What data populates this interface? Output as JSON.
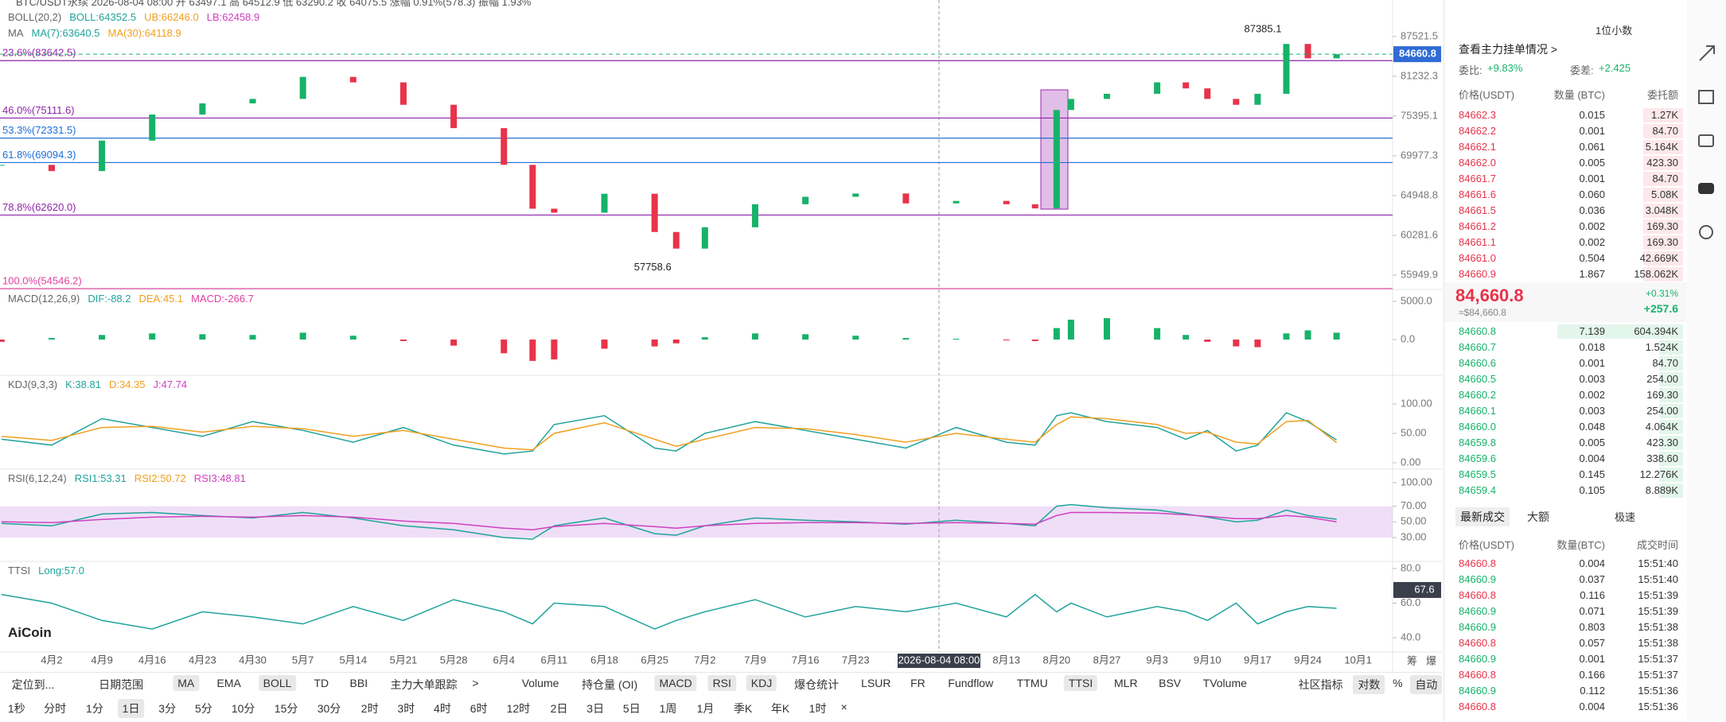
{
  "header": {
    "symbol_line": "BTC/USDT永续 2026-08-04 08:00 开 63497.1 高 64512.9 低 63290.2 收 64075.5 涨幅 0.91%(578.3) 振幅 1.93%",
    "logo": "AiCoin"
  },
  "chart_data": [
    {
      "type": "candlestick",
      "log": true,
      "labels": [
        [
          {
            "text": "BOLL(20,2)",
            "color": "#666"
          },
          {
            "text": "BOLL:64352.5",
            "color": "#21a39b"
          },
          {
            "text": "UB:66246.0",
            "color": "#f0a020"
          },
          {
            "text": "LB:62458.9",
            "color": "#d040c0"
          }
        ],
        [
          {
            "text": "MA",
            "color": "#666"
          },
          {
            "text": "MA(7):63640.5",
            "color": "#21a39b"
          },
          {
            "text": "MA(30):64118.9",
            "color": "#f0a020"
          }
        ]
      ],
      "x": [
        -7,
        0,
        7,
        14,
        21,
        28,
        35,
        42,
        49,
        56,
        63,
        67,
        70,
        77,
        84,
        87,
        91,
        98,
        105,
        112,
        119,
        126,
        133,
        137,
        140,
        142,
        147,
        154,
        158,
        161,
        165,
        168,
        172,
        175,
        179
      ],
      "close": [
        68800,
        68000,
        72000,
        75600,
        77200,
        77850,
        81130,
        80300,
        77000,
        73700,
        68800,
        63370,
        62900,
        65170,
        60660,
        58800,
        61200,
        63900,
        64800,
        65200,
        64000,
        64300,
        63900,
        63400,
        76250,
        77850,
        78600,
        80300,
        79400,
        77850,
        77000,
        78600,
        86300,
        84000,
        84660.8
      ],
      "up_color": "#17b26a",
      "down_color": "#e8334a",
      "xlim": [
        -7.2,
        186.8
      ],
      "xticks": [
        {
          "value": 0,
          "label": "4月2"
        },
        {
          "value": 7,
          "label": "4月9"
        },
        {
          "value": 14,
          "label": "4月16"
        },
        {
          "value": 21,
          "label": "4月23"
        },
        {
          "value": 28,
          "label": "4月30"
        },
        {
          "value": 35,
          "label": "5月7"
        },
        {
          "value": 42,
          "label": "5月14"
        },
        {
          "value": 49,
          "label": "5月21"
        },
        {
          "value": 56,
          "label": "5月28"
        },
        {
          "value": 63,
          "label": "6月4"
        },
        {
          "value": 70,
          "label": "6月11"
        },
        {
          "value": 77,
          "label": "6月18"
        },
        {
          "value": 84,
          "label": "6月25"
        },
        {
          "value": 91,
          "label": "7月2"
        },
        {
          "value": 98,
          "label": "7月9"
        },
        {
          "value": 105,
          "label": "7月16"
        },
        {
          "value": 112,
          "label": "7月23"
        },
        {
          "value": 133,
          "label": "8月13"
        },
        {
          "value": 140,
          "label": "8月20"
        },
        {
          "value": 147,
          "label": "8月27"
        },
        {
          "value": 154,
          "label": "9月3"
        },
        {
          "value": 161,
          "label": "9月10"
        },
        {
          "value": 168,
          "label": "9月17"
        },
        {
          "value": 175,
          "label": "9月24"
        },
        {
          "value": 182,
          "label": "10月1"
        }
      ],
      "ylim": [
        54630,
        92600
      ],
      "yticks": [
        87521.5,
        81232.3,
        75395.1,
        69977.3,
        64948.8,
        60281.6,
        55949.9
      ],
      "fib_levels": [
        {
          "value": 83642.5,
          "label": "23.6%(83642.5)",
          "color": "#8e24aa"
        },
        {
          "value": 75111.6,
          "label": "46.0%(75111.6)",
          "color": "#8e24aa"
        },
        {
          "value": 72331.5,
          "label": "53.3%(72331.5)",
          "color": "#1e6fd9"
        },
        {
          "value": 69094.3,
          "label": "61.8%(69094.3)",
          "color": "#1e6fd9"
        },
        {
          "value": 62620.0,
          "label": "78.8%(62620.0)",
          "color": "#8e24aa"
        },
        {
          "value": 54546.2,
          "label": "100.0%(54546.2)",
          "color": "#e040a0"
        }
      ],
      "extremes": [
        {
          "x": 172,
          "value": 87385.1
        },
        {
          "x": 87,
          "value": 57758.6
        }
      ],
      "current_price": 84660.8,
      "crosshair_label": "2026-08-04 08:00",
      "axis_extra": [
        "筹",
        "爆"
      ]
    },
    {
      "type": "bar",
      "labels": [
        [
          {
            "text": "MACD(12,26,9)",
            "color": "#666"
          },
          {
            "text": "DIF:-88.2",
            "color": "#21a39b"
          },
          {
            "text": "DEA:45.1",
            "color": "#f0a020"
          },
          {
            "text": "MACD:-266.7",
            "color": "#e040a0"
          }
        ]
      ],
      "x": [
        -7,
        0,
        7,
        14,
        21,
        28,
        35,
        42,
        49,
        56,
        63,
        67,
        70,
        77,
        84,
        87,
        91,
        98,
        105,
        112,
        119,
        126,
        133,
        137,
        140,
        142,
        147,
        154,
        158,
        161,
        165,
        168,
        172,
        175,
        179
      ],
      "values": [
        -300,
        200,
        600,
        800,
        700,
        600,
        900,
        500,
        -200,
        -800,
        -1800,
        -2800,
        -2600,
        -1200,
        -900,
        -500,
        300,
        800,
        700,
        500,
        200,
        100,
        -100,
        -200,
        1500,
        2600,
        2800,
        1500,
        600,
        -300,
        -900,
        -1000,
        800,
        1200,
        900
      ],
      "ylim": [
        -4479,
        6354
      ],
      "yticks": [
        {
          "value": 5000,
          "label": "5000.0"
        },
        {
          "value": 0,
          "label": "0.0"
        }
      ]
    },
    {
      "type": "line",
      "labels": [
        [
          {
            "text": "KDJ(9,3,3)",
            "color": "#666"
          },
          {
            "text": "K:38.81",
            "color": "#21a39b"
          },
          {
            "text": "D:34.35",
            "color": "#f0a020"
          },
          {
            "text": "J:47.74",
            "color": "#d040c0"
          }
        ]
      ],
      "x": [
        -7,
        0,
        7,
        14,
        21,
        28,
        35,
        42,
        49,
        56,
        63,
        67,
        70,
        77,
        84,
        87,
        91,
        98,
        105,
        112,
        119,
        126,
        133,
        137,
        140,
        142,
        147,
        154,
        158,
        161,
        165,
        168,
        172,
        175,
        179
      ],
      "series": [
        {
          "color": "#21a39b",
          "values": [
            40,
            30,
            75,
            60,
            45,
            70,
            55,
            35,
            60,
            30,
            15,
            20,
            65,
            80,
            25,
            20,
            50,
            70,
            55,
            40,
            25,
            60,
            35,
            30,
            80,
            85,
            70,
            60,
            40,
            55,
            20,
            30,
            85,
            70,
            38.81
          ]
        },
        {
          "color": "#f0a020",
          "values": [
            45,
            38,
            60,
            62,
            52,
            62,
            58,
            45,
            55,
            40,
            25,
            22,
            50,
            68,
            40,
            28,
            40,
            60,
            58,
            48,
            35,
            50,
            40,
            35,
            65,
            78,
            75,
            65,
            50,
            52,
            35,
            32,
            70,
            72,
            34.35
          ]
        }
      ],
      "ylim": [
        -10.8,
        145.9
      ],
      "yticks": [
        {
          "value": 100,
          "label": "100.00"
        },
        {
          "value": 50,
          "label": "50.00"
        },
        {
          "value": 0,
          "label": "0.00"
        }
      ]
    },
    {
      "type": "line",
      "labels": [
        [
          {
            "text": "RSI(6,12,24)",
            "color": "#666"
          },
          {
            "text": "RSI1:53.31",
            "color": "#21a39b"
          },
          {
            "text": "RSI2:50.72",
            "color": "#f0a020"
          },
          {
            "text": "RSI3:48.81",
            "color": "#d040c0"
          }
        ]
      ],
      "x": [
        -7,
        0,
        7,
        14,
        21,
        28,
        35,
        42,
        49,
        56,
        63,
        67,
        70,
        77,
        84,
        87,
        91,
        98,
        105,
        112,
        119,
        126,
        133,
        137,
        140,
        142,
        147,
        154,
        158,
        161,
        165,
        168,
        172,
        175,
        179
      ],
      "series": [
        {
          "color": "#21a39b",
          "values": [
            48,
            45,
            60,
            62,
            58,
            55,
            62,
            55,
            45,
            40,
            30,
            28,
            45,
            55,
            35,
            33,
            45,
            55,
            52,
            50,
            47,
            52,
            48,
            45,
            70,
            72,
            68,
            65,
            60,
            56,
            50,
            52,
            65,
            58,
            53.31
          ]
        },
        {
          "color": "#d040c0",
          "values": [
            50,
            49,
            53,
            56,
            57,
            56,
            58,
            56,
            51,
            48,
            42,
            40,
            44,
            48,
            44,
            42,
            45,
            48,
            49,
            49,
            48,
            49,
            48,
            47,
            58,
            62,
            62,
            61,
            59,
            57,
            54,
            54,
            58,
            56,
            50
          ]
        }
      ],
      "band": [
        30,
        70
      ],
      "ylim": [
        0.6,
        115.2
      ],
      "yticks": [
        {
          "value": 100,
          "label": "100.00"
        },
        {
          "value": 70,
          "label": "70.00"
        },
        {
          "value": 50,
          "label": "50.00"
        },
        {
          "value": 30,
          "label": "30.00"
        }
      ]
    },
    {
      "type": "line",
      "labels": [
        [
          {
            "text": "TTSI",
            "color": "#666"
          },
          {
            "text": "Long:57.0",
            "color": "#21a39b"
          }
        ]
      ],
      "x": [
        -7,
        0,
        7,
        14,
        21,
        28,
        35,
        42,
        49,
        56,
        63,
        67,
        70,
        77,
        84,
        87,
        91,
        98,
        105,
        112,
        119,
        126,
        133,
        137,
        140,
        142,
        147,
        154,
        158,
        161,
        165,
        168,
        172,
        175,
        179
      ],
      "series": [
        {
          "color": "#21a39b",
          "values": [
            65,
            60,
            50,
            45,
            55,
            52,
            48,
            58,
            50,
            62,
            55,
            48,
            60,
            58,
            45,
            50,
            55,
            62,
            52,
            58,
            55,
            60,
            52,
            65,
            55,
            60,
            52,
            58,
            55,
            50,
            60,
            48,
            55,
            58,
            57
          ]
        }
      ],
      "current": 67.6,
      "ylim": [
        32.2,
        83.2
      ],
      "yticks": [
        {
          "value": 80,
          "label": "80.0"
        },
        {
          "value": 60,
          "label": "60.0"
        },
        {
          "value": 40,
          "label": "40.0"
        }
      ]
    }
  ],
  "order_panel": {
    "decimals": "1位小数",
    "title": "查看主力挂单情况 >",
    "ratio_label": "委比:",
    "ratio": "+9.83%",
    "diff_label": "委差:",
    "diff": "+2.425",
    "headers": [
      "价格(USDT)",
      "数量 (BTC)",
      "委托额"
    ],
    "asks": [
      [
        "84662.3",
        "0.015",
        "1.27K"
      ],
      [
        "84662.2",
        "0.001",
        "84.70"
      ],
      [
        "84662.1",
        "0.061",
        "5.164K"
      ],
      [
        "84662.0",
        "0.005",
        "423.30"
      ],
      [
        "84661.7",
        "0.001",
        "84.70"
      ],
      [
        "84661.6",
        "0.060",
        "5.08K"
      ],
      [
        "84661.5",
        "0.036",
        "3.048K"
      ],
      [
        "84661.2",
        "0.002",
        "169.30"
      ],
      [
        "84661.1",
        "0.002",
        "169.30"
      ],
      [
        "84661.0",
        "0.504",
        "42.669K"
      ],
      [
        "84660.9",
        "1.867",
        "158.062K"
      ]
    ],
    "last_price": "84,660.8",
    "last_usd": "≈$84,660.8",
    "change_pct": "+0.31%",
    "change": "+257.6",
    "bids": [
      [
        "84660.8",
        "7.139",
        "604.394K"
      ],
      [
        "84660.7",
        "0.018",
        "1.524K"
      ],
      [
        "84660.6",
        "0.001",
        "84.70"
      ],
      [
        "84660.5",
        "0.003",
        "254.00"
      ],
      [
        "84660.2",
        "0.002",
        "169.30"
      ],
      [
        "84660.1",
        "0.003",
        "254.00"
      ],
      [
        "84660.0",
        "0.048",
        "4.064K"
      ],
      [
        "84659.8",
        "0.005",
        "423.30"
      ],
      [
        "84659.6",
        "0.004",
        "338.60"
      ],
      [
        "84659.5",
        "0.145",
        "12.276K"
      ],
      [
        "84659.4",
        "0.105",
        "8.889K"
      ]
    ],
    "trade_tabs": [
      "最新成交",
      "大额"
    ],
    "fast": "极速",
    "trade_headers": [
      "价格(USDT)",
      "数量(BTC)",
      "成交时间"
    ],
    "trades": [
      [
        "84660.8",
        "0.004",
        "15:51:40",
        "#e8334a"
      ],
      [
        "84660.9",
        "0.037",
        "15:51:40",
        "#17b26a"
      ],
      [
        "84660.8",
        "0.116",
        "15:51:39",
        "#e8334a"
      ],
      [
        "84660.9",
        "0.071",
        "15:51:39",
        "#17b26a"
      ],
      [
        "84660.9",
        "0.803",
        "15:51:38",
        "#17b26a"
      ],
      [
        "84660.8",
        "0.057",
        "15:51:38",
        "#e8334a"
      ],
      [
        "84660.9",
        "0.001",
        "15:51:37",
        "#17b26a"
      ],
      [
        "84660.8",
        "0.166",
        "15:51:37",
        "#e8334a"
      ],
      [
        "84660.9",
        "0.112",
        "15:51:36",
        "#17b26a"
      ],
      [
        "84660.8",
        "0.004",
        "15:51:36",
        "#e8334a"
      ]
    ]
  },
  "toolbar": {
    "row1": [
      {
        "text": "定位到...",
        "active": false
      },
      {
        "text": "日期范围",
        "active": false
      },
      {
        "text": "MA",
        "active": true
      },
      {
        "text": "EMA",
        "active": false
      },
      {
        "text": "BOLL",
        "active": true
      },
      {
        "text": "TD",
        "active": false
      },
      {
        "text": "BBI",
        "active": false
      },
      {
        "text": "主力大单跟踪",
        "active": false
      },
      {
        "text": ">",
        "active": false
      },
      {
        "text": "Volume",
        "active": false
      },
      {
        "text": "持仓量 (OI)",
        "active": false
      },
      {
        "text": "MACD",
        "active": true
      },
      {
        "text": "RSI",
        "active": true
      },
      {
        "text": "KDJ",
        "active": true
      },
      {
        "text": "爆仓统计",
        "active": false
      },
      {
        "text": "LSUR",
        "active": false
      },
      {
        "text": "FR",
        "active": false
      },
      {
        "text": "Fundflow",
        "active": false
      },
      {
        "text": "TTMU",
        "active": false
      },
      {
        "text": "TTSI",
        "active": true
      },
      {
        "text": "MLR",
        "active": false
      },
      {
        "text": "BSV",
        "active": false
      },
      {
        "text": "TVolume",
        "active": false
      },
      {
        "text": "社区指标",
        "active": false
      },
      {
        "text": "对数",
        "active": true
      },
      {
        "text": "%",
        "active": false
      },
      {
        "text": "自动",
        "active": true
      }
    ],
    "row2": [
      {
        "text": "1秒",
        "active": false
      },
      {
        "text": "分时",
        "active": false
      },
      {
        "text": "1分",
        "active": false
      },
      {
        "text": "1日",
        "active": true
      },
      {
        "text": "3分",
        "active": false
      },
      {
        "text": "5分",
        "active": false
      },
      {
        "text": "10分",
        "active": false
      },
      {
        "text": "15分",
        "active": false
      },
      {
        "text": "30分",
        "active": false
      },
      {
        "text": "2时",
        "active": false
      },
      {
        "text": "3时",
        "active": false
      },
      {
        "text": "4时",
        "active": false
      },
      {
        "text": "6时",
        "active": false
      },
      {
        "text": "12时",
        "active": false
      },
      {
        "text": "2日",
        "active": false
      },
      {
        "text": "3日",
        "active": false
      },
      {
        "text": "5日",
        "active": false
      },
      {
        "text": "1周",
        "active": false
      },
      {
        "text": "1月",
        "active": false
      },
      {
        "text": "季K",
        "active": false
      },
      {
        "text": "年K",
        "active": false
      },
      {
        "text": "1时",
        "active": false
      },
      {
        "text": "×",
        "active": false
      }
    ]
  }
}
